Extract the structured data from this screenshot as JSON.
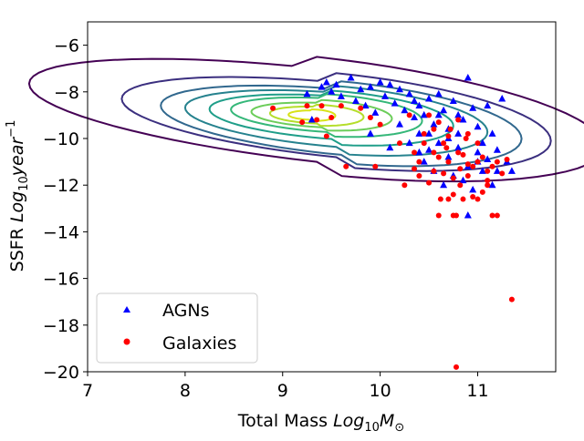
{
  "chart_data": {
    "type": "scatter",
    "xlabel_prefix": "Total Mass ",
    "xlabel_math": "Log",
    "xlabel_sub": "10",
    "xlabel_var": "M",
    "xlabel_sun": "⊙",
    "ylabel_prefix": "SSFR ",
    "ylabel_math": "Log",
    "ylabel_sub": "10",
    "ylabel_var": "year",
    "ylabel_sup": "−1",
    "xlim": [
      7,
      11.8
    ],
    "ylim": [
      -20,
      -5
    ],
    "x_ticks": [
      7,
      8,
      9,
      10,
      11
    ],
    "x_tick_labels": [
      "7",
      "8",
      "9",
      "10",
      "11"
    ],
    "y_ticks": [
      -20,
      -18,
      -16,
      -14,
      -12,
      -10,
      -8,
      -6
    ],
    "y_tick_labels": [
      "−20",
      "−18",
      "−16",
      "−14",
      "−12",
      "−10",
      "−8",
      "−6"
    ],
    "legend_position": "lower-left",
    "grid": false,
    "series": [
      {
        "name": "AGNs",
        "marker": "triangle",
        "color": "#0000ff",
        "points": [
          [
            9.25,
            -8.1
          ],
          [
            9.3,
            -9.2
          ],
          [
            9.4,
            -7.8
          ],
          [
            9.45,
            -7.6
          ],
          [
            9.5,
            -8.0
          ],
          [
            9.55,
            -7.7
          ],
          [
            9.6,
            -8.2
          ],
          [
            9.7,
            -7.4
          ],
          [
            9.75,
            -8.4
          ],
          [
            9.8,
            -7.9
          ],
          [
            9.85,
            -8.6
          ],
          [
            9.9,
            -7.8
          ],
          [
            9.95,
            -8.9
          ],
          [
            10.0,
            -7.6
          ],
          [
            10.05,
            -8.2
          ],
          [
            10.1,
            -7.7
          ],
          [
            10.15,
            -8.5
          ],
          [
            10.2,
            -7.9
          ],
          [
            10.25,
            -8.8
          ],
          [
            10.3,
            -8.1
          ],
          [
            10.35,
            -8.4
          ],
          [
            10.4,
            -8.6
          ],
          [
            10.45,
            -9.0
          ],
          [
            10.5,
            -8.3
          ],
          [
            10.55,
            -9.4
          ],
          [
            10.6,
            -8.1
          ],
          [
            10.65,
            -8.8
          ],
          [
            10.7,
            -9.6
          ],
          [
            10.75,
            -8.4
          ],
          [
            10.8,
            -9.0
          ],
          [
            10.85,
            -9.2
          ],
          [
            10.9,
            -7.4
          ],
          [
            10.95,
            -8.7
          ],
          [
            11.0,
            -9.5
          ],
          [
            11.05,
            -10.2
          ],
          [
            11.1,
            -8.6
          ],
          [
            11.15,
            -9.8
          ],
          [
            11.2,
            -10.5
          ],
          [
            11.25,
            -8.3
          ],
          [
            11.3,
            -11.0
          ],
          [
            11.35,
            -11.4
          ],
          [
            10.4,
            -10.6
          ],
          [
            10.5,
            -9.8
          ],
          [
            10.6,
            -10.2
          ],
          [
            10.7,
            -10.8
          ],
          [
            10.8,
            -10.4
          ],
          [
            10.9,
            -11.2
          ],
          [
            11.0,
            -11.0
          ],
          [
            11.1,
            -10.9
          ],
          [
            10.3,
            -10.2
          ],
          [
            10.45,
            -11.0
          ],
          [
            10.55,
            -11.4
          ],
          [
            10.65,
            -12.0
          ],
          [
            10.75,
            -11.6
          ],
          [
            10.85,
            -11.8
          ],
          [
            10.95,
            -12.2
          ],
          [
            11.05,
            -11.4
          ],
          [
            11.15,
            -12.0
          ],
          [
            10.9,
            -13.3
          ],
          [
            10.2,
            -9.4
          ],
          [
            10.1,
            -10.4
          ],
          [
            9.9,
            -9.8
          ],
          [
            10.35,
            -9.1
          ],
          [
            10.6,
            -9.0
          ],
          [
            10.8,
            -9.8
          ],
          [
            11.0,
            -10.6
          ],
          [
            10.7,
            -10.0
          ],
          [
            10.5,
            -10.5
          ],
          [
            11.2,
            -11.4
          ],
          [
            10.4,
            -9.8
          ]
        ]
      },
      {
        "name": "Galaxies",
        "marker": "circle",
        "color": "#ff0000",
        "points": [
          [
            8.9,
            -8.7
          ],
          [
            9.2,
            -9.3
          ],
          [
            9.25,
            -8.6
          ],
          [
            9.35,
            -9.2
          ],
          [
            9.4,
            -8.6
          ],
          [
            9.45,
            -9.9
          ],
          [
            9.5,
            -9.1
          ],
          [
            9.6,
            -8.6
          ],
          [
            9.65,
            -11.2
          ],
          [
            9.8,
            -8.7
          ],
          [
            9.9,
            -9.1
          ],
          [
            9.95,
            -11.2
          ],
          [
            10.0,
            -9.4
          ],
          [
            10.2,
            -10.2
          ],
          [
            10.25,
            -12.0
          ],
          [
            10.3,
            -9.0
          ],
          [
            10.35,
            -10.6
          ],
          [
            10.4,
            -11.0
          ],
          [
            10.45,
            -9.8
          ],
          [
            10.5,
            -9.0
          ],
          [
            10.55,
            -11.4
          ],
          [
            10.6,
            -9.3
          ],
          [
            10.62,
            -12.6
          ],
          [
            10.65,
            -10.2
          ],
          [
            10.7,
            -11.0
          ],
          [
            10.72,
            -9.6
          ],
          [
            10.75,
            -12.4
          ],
          [
            10.78,
            -13.3
          ],
          [
            10.8,
            -10.6
          ],
          [
            10.82,
            -11.3
          ],
          [
            10.85,
            -12.6
          ],
          [
            10.88,
            -10.0
          ],
          [
            10.9,
            -11.1
          ],
          [
            10.95,
            -12.5
          ],
          [
            11.0,
            -11.0
          ],
          [
            11.05,
            -12.3
          ],
          [
            11.1,
            -11.4
          ],
          [
            11.15,
            -13.3
          ],
          [
            11.2,
            -11.0
          ],
          [
            11.25,
            -11.5
          ],
          [
            11.3,
            -10.9
          ],
          [
            10.55,
            -9.6
          ],
          [
            10.6,
            -10.8
          ],
          [
            10.7,
            -9.9
          ],
          [
            10.75,
            -11.7
          ],
          [
            10.85,
            -10.7
          ],
          [
            10.95,
            -11.2
          ],
          [
            11.05,
            -10.8
          ],
          [
            11.1,
            -11.8
          ],
          [
            10.65,
            -11.5
          ],
          [
            10.45,
            -10.2
          ],
          [
            10.8,
            -9.2
          ],
          [
            10.9,
            -9.8
          ],
          [
            11.0,
            -10.2
          ],
          [
            10.6,
            -13.3
          ],
          [
            11.2,
            -13.3
          ],
          [
            10.75,
            -13.3
          ],
          [
            11.35,
            -16.9
          ],
          [
            10.78,
            -19.8
          ],
          [
            10.5,
            -11.9
          ],
          [
            10.7,
            -12.6
          ],
          [
            11.1,
            -12.0
          ],
          [
            10.4,
            -11.6
          ],
          [
            10.9,
            -11.6
          ],
          [
            11.15,
            -11.2
          ],
          [
            10.55,
            -10.6
          ],
          [
            10.68,
            -10.4
          ],
          [
            10.82,
            -12.0
          ],
          [
            11.0,
            -12.6
          ],
          [
            10.35,
            -11.3
          ]
        ]
      }
    ],
    "contours": {
      "colors": [
        "#440154",
        "#3b2f7f",
        "#31688e",
        "#26828e",
        "#1f9e89",
        "#35b779",
        "#6ccd5a",
        "#b5de2b",
        "#d8e219"
      ],
      "levels": [
        {
          "cx": 9.35,
          "cy": -9.0,
          "rx": 2.95,
          "ry": 2.5,
          "skew": 0.6
        },
        {
          "cx": 9.55,
          "cy": -9.2,
          "rx": 2.2,
          "ry": 2.0,
          "skew": 0.5
        },
        {
          "cx": 9.6,
          "cy": -9.3,
          "rx": 1.85,
          "ry": 1.75,
          "skew": 0.45
        },
        {
          "cx": 9.55,
          "cy": -9.2,
          "rx": 1.55,
          "ry": 1.45,
          "skew": 0.4
        },
        {
          "cx": 9.5,
          "cy": -9.1,
          "rx": 1.25,
          "ry": 1.15,
          "skew": 0.35
        },
        {
          "cx": 9.45,
          "cy": -9.0,
          "rx": 0.98,
          "ry": 0.9,
          "skew": 0.3
        },
        {
          "cx": 9.4,
          "cy": -9.0,
          "rx": 0.72,
          "ry": 0.65,
          "skew": 0.25
        },
        {
          "cx": 9.35,
          "cy": -9.0,
          "rx": 0.48,
          "ry": 0.45,
          "skew": 0.2
        },
        {
          "cx": 9.3,
          "cy": -9.0,
          "rx": 0.24,
          "ry": 0.25,
          "skew": 0.1
        }
      ]
    }
  }
}
